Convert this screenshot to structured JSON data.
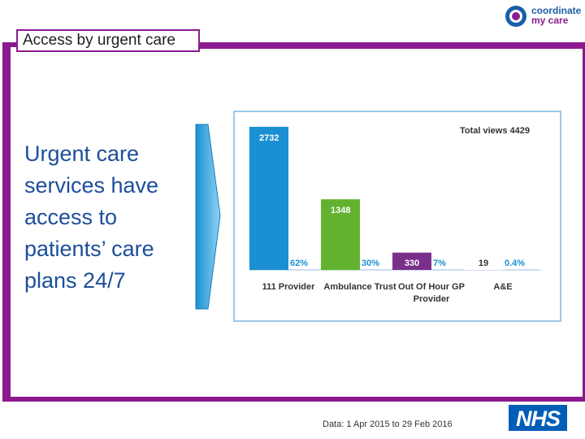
{
  "logo": {
    "line1": "coordinate",
    "line2": "my care"
  },
  "title": "Access by urgent care",
  "headline": "Urgent care services have access to patients’ care plans 24/7",
  "chart_data": {
    "type": "bar",
    "title": "",
    "total_label": "Total views 4429",
    "categories": [
      "111 Provider",
      "Ambulance Trust",
      "Out Of Hour GP Provider",
      "A&E"
    ],
    "category_lines": [
      [
        "111 Provider"
      ],
      [
        "Ambulance Trust"
      ],
      [
        "Out Of Hour GP",
        "Provider"
      ],
      [
        "A&E"
      ]
    ],
    "values": [
      2732,
      1348,
      330,
      19
    ],
    "percent_labels": [
      "62%",
      "30%",
      "7%",
      "0.4%"
    ],
    "colors": [
      "#1a8fd1",
      "#62b22f",
      "#7a2f8a",
      "#ffffff"
    ],
    "ylim": [
      0,
      2732
    ],
    "grid": false,
    "legend": "none"
  },
  "colors": {
    "frame": "#8b1a8e",
    "headline": "#1c4e9a",
    "percent": "#1a8fd1"
  },
  "footer": "Data: 1 Apr 2015 to 29 Feb 2016",
  "nhs_logo": "NHS"
}
